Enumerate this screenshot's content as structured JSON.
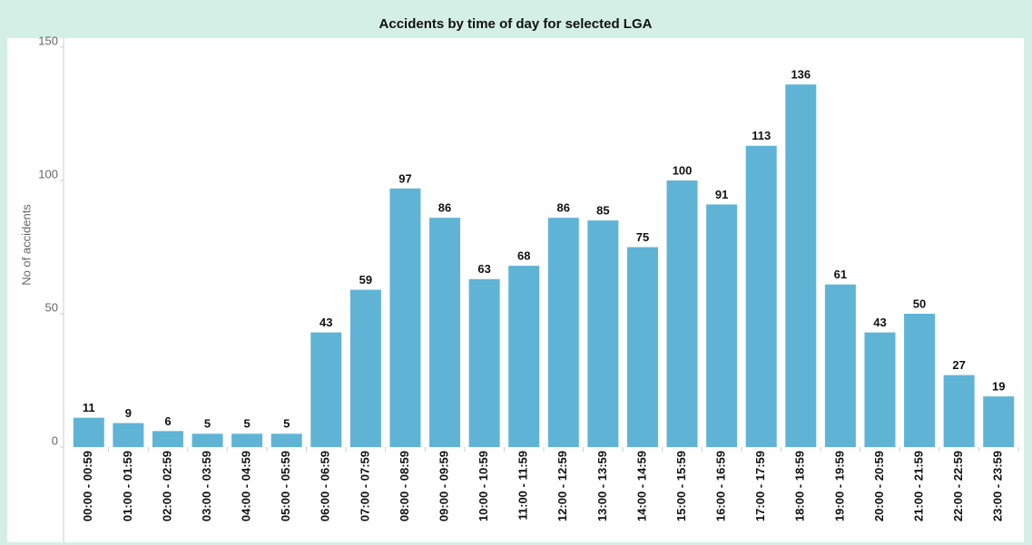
{
  "chart_data": {
    "type": "bar",
    "title": "Accidents by time of day for selected LGA",
    "y_label": "No of accidents",
    "categories": [
      "00:00 - 00:59",
      "01:00 - 01:59",
      "02:00 - 02:59",
      "03:00 - 03:59",
      "04:00 - 04:59",
      "05:00 - 05:59",
      "06:00 - 06:59",
      "07:00 - 07:59",
      "08:00 - 08:59",
      "09:00 - 09:59",
      "10:00 - 10:59",
      "11:00 - 11:59",
      "12:00 - 12:59",
      "13:00 - 13:59",
      "14:00 - 14:59",
      "15:00 - 15:59",
      "16:00 - 16:59",
      "17:00 - 17:59",
      "18:00 - 18:59",
      "19:00 - 19:59",
      "20:00 - 20:59",
      "21:00 - 21:59",
      "22:00 - 22:59",
      "23:00 - 23:59"
    ],
    "values": [
      11,
      9,
      6,
      5,
      5,
      5,
      43,
      59,
      97,
      86,
      63,
      68,
      86,
      85,
      75,
      100,
      91,
      113,
      136,
      61,
      43,
      50,
      27,
      19
    ],
    "color": "#5fb4d5",
    "ylim": [
      0,
      150
    ],
    "yticks": [
      0,
      50,
      100,
      150
    ],
    "grid": false
  }
}
